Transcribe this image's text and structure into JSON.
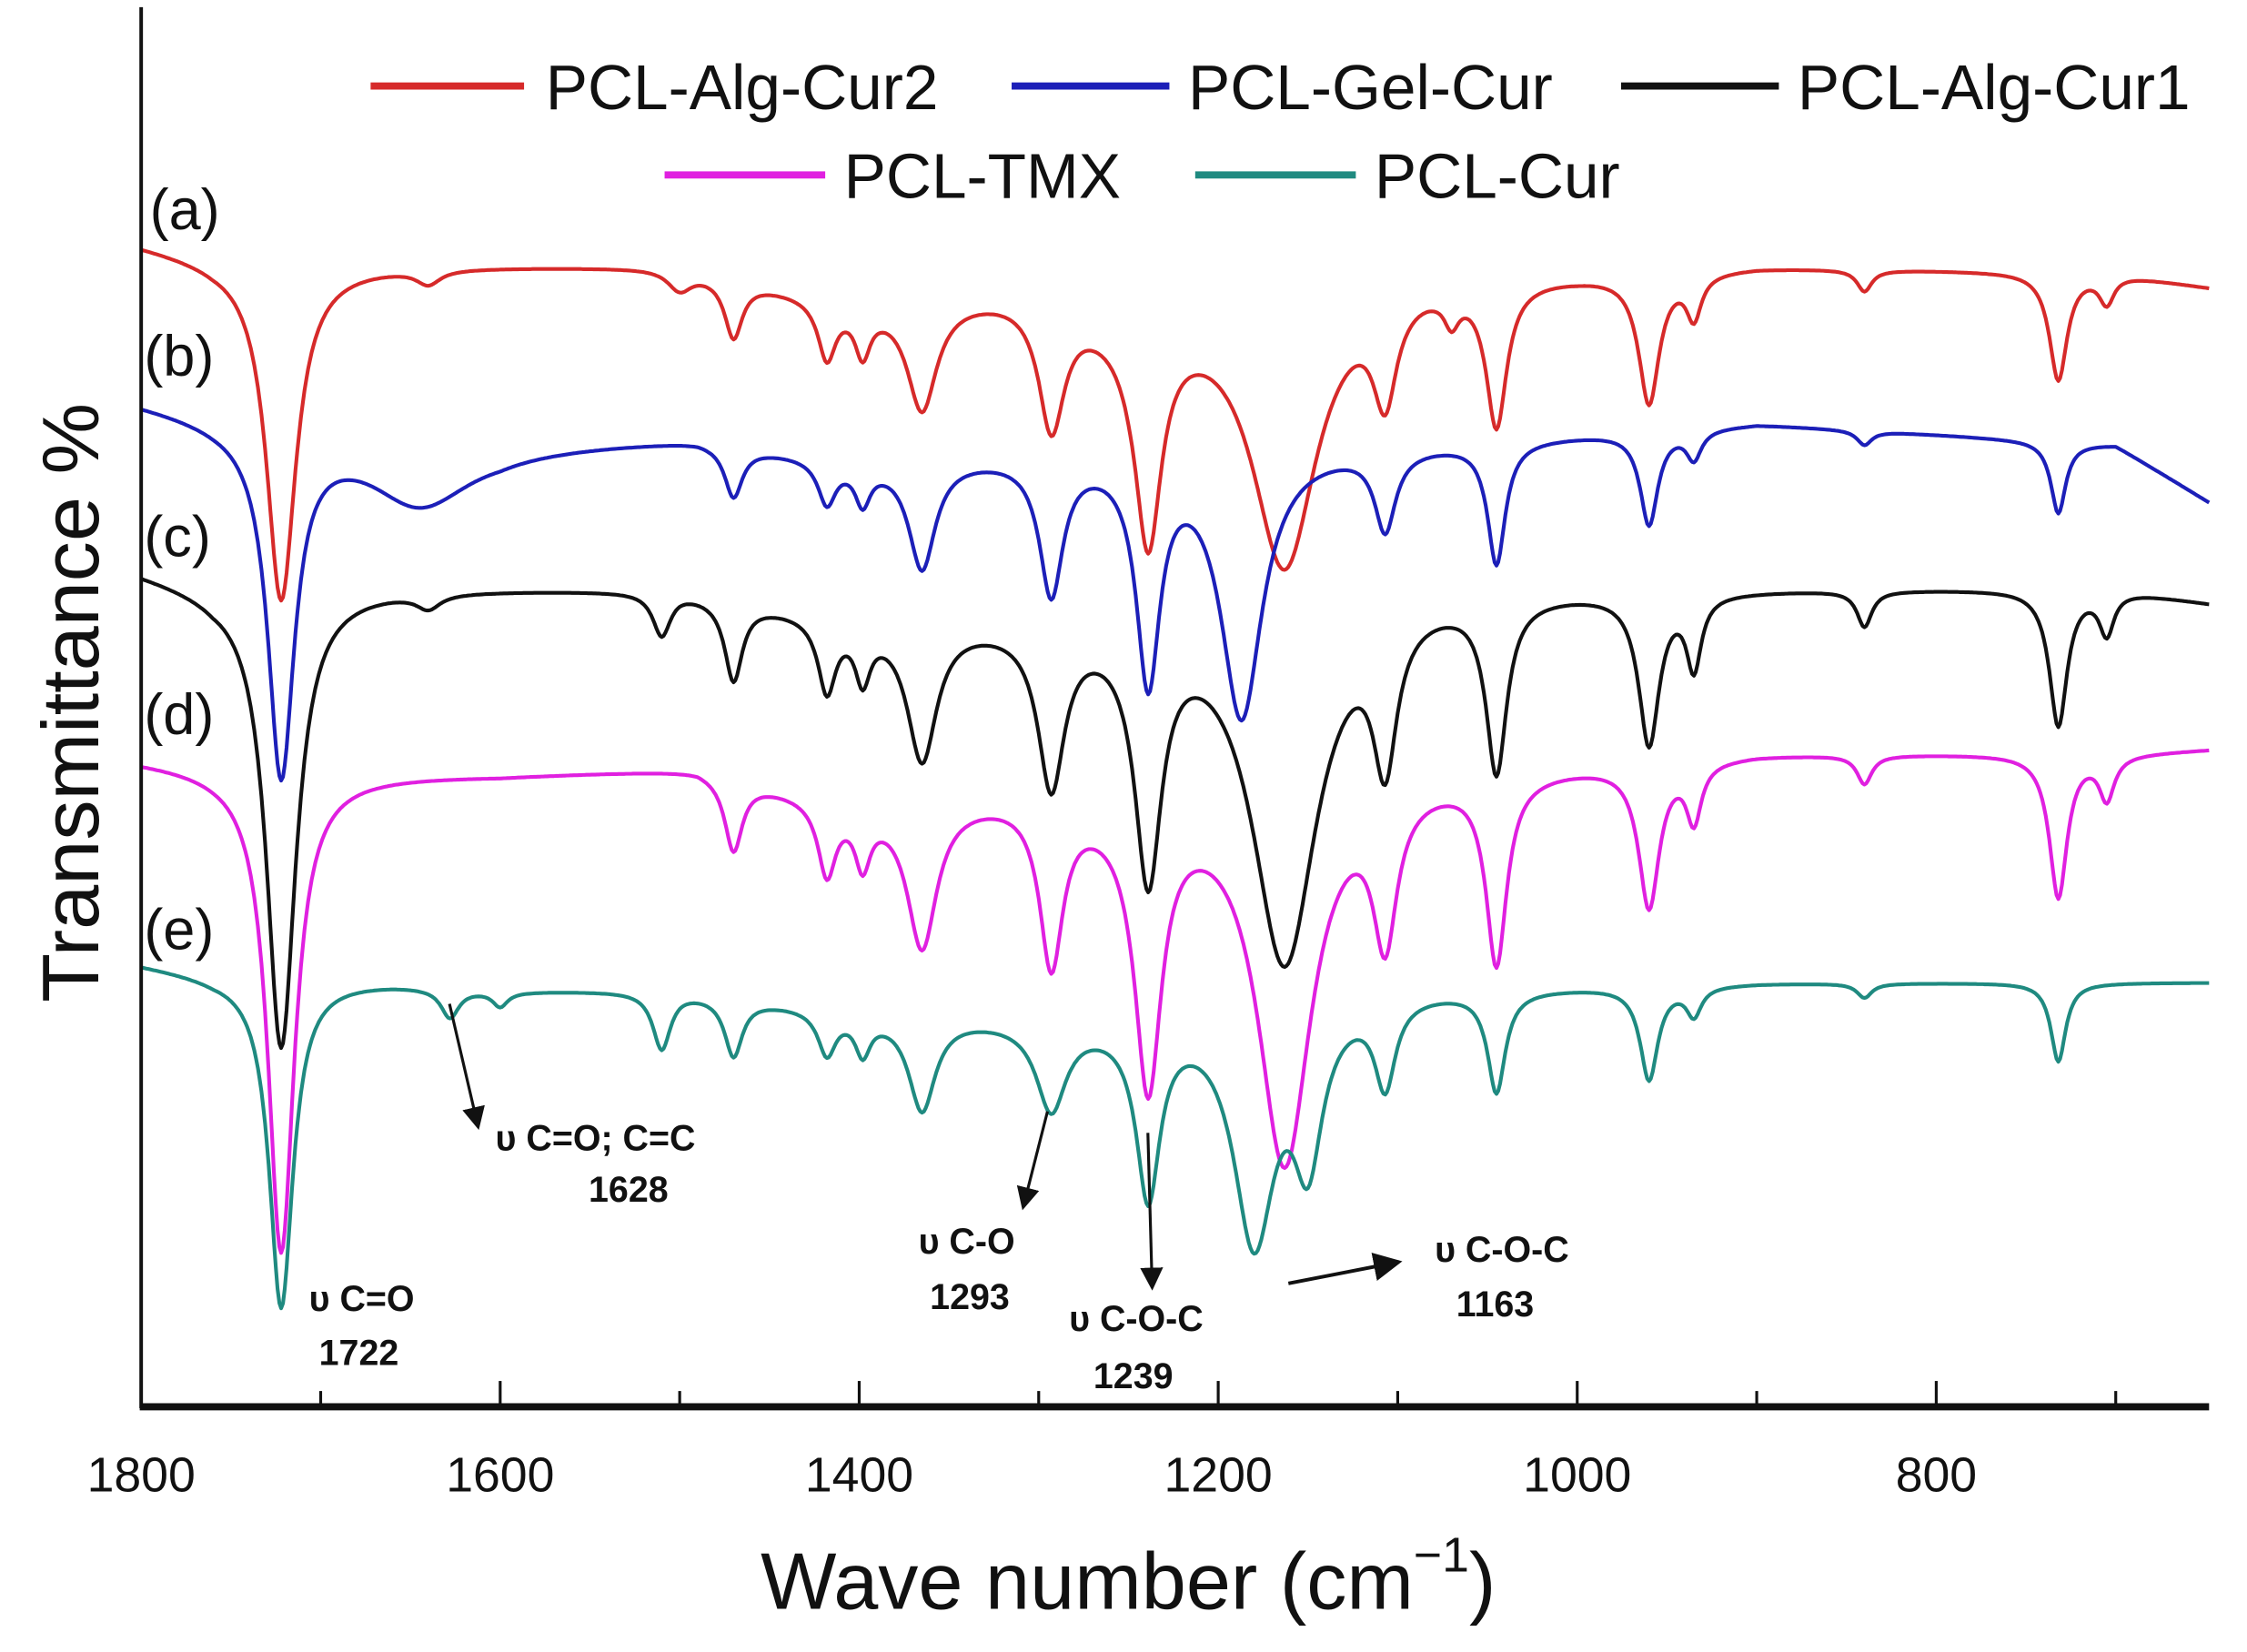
{
  "chart_data": {
    "type": "line",
    "title": "",
    "xlabel": "Wave number (cm",
    "xlabel_sup": "−1",
    "xlabel_close": ")",
    "ylabel": "Transmittance %",
    "xlim": [
      1800,
      648
    ],
    "ylim": [
      0,
      97.5
    ],
    "x_ticks": [
      1800,
      1600,
      1400,
      1200,
      1000,
      800
    ],
    "x_minor_ticks": [
      1700,
      1500,
      1300,
      1100,
      900,
      700
    ],
    "grid": false,
    "legend_position": "top",
    "series": [
      {
        "name": "PCL-Alg-Cur2",
        "tag": "(a)",
        "color": "#d62a2a",
        "baseline": [
          [
            1800,
            81
          ],
          [
            1760,
            80
          ],
          [
            1700,
            79.5
          ],
          [
            1500,
            79.5
          ],
          [
            1400,
            77
          ],
          [
            1300,
            78
          ],
          [
            1250,
            76
          ],
          [
            1100,
            79
          ],
          [
            1000,
            79
          ],
          [
            900,
            79.5
          ],
          [
            700,
            79
          ],
          [
            648,
            78
          ]
        ],
        "peaks": [
          [
            1722,
            23.5,
            10
          ],
          [
            1640,
            1,
            8
          ],
          [
            1500,
            1.5,
            8
          ],
          [
            1470,
            4,
            6
          ],
          [
            1418,
            4,
            6
          ],
          [
            1398,
            3,
            5
          ],
          [
            1365,
            7.5,
            10
          ],
          [
            1293,
            9,
            9
          ],
          [
            1239,
            15,
            9
          ],
          [
            1163,
            19,
            22
          ],
          [
            1107,
            7,
            8
          ],
          [
            1070,
            2,
            5
          ],
          [
            1045,
            10,
            7
          ],
          [
            960,
            9,
            7
          ],
          [
            935,
            3,
            5
          ],
          [
            840,
            1.5,
            5
          ],
          [
            732,
            7.5,
            6
          ],
          [
            705,
            2,
            5
          ]
        ]
      },
      {
        "name": "PCL-Gel-Cur",
        "tag": "(b)",
        "color": "#1c1fb8",
        "baseline": [
          [
            1800,
            70
          ],
          [
            1760,
            69
          ],
          [
            1700,
            68
          ],
          [
            1600,
            67
          ],
          [
            1490,
            67.5
          ],
          [
            1400,
            66
          ],
          [
            1300,
            66.5
          ],
          [
            1100,
            67
          ],
          [
            900,
            68.5
          ],
          [
            700,
            67
          ],
          [
            648,
            63
          ]
        ],
        "peaks": [
          [
            1722,
            24,
            9
          ],
          [
            1645,
            4.5,
            35
          ],
          [
            1470,
            3.5,
            6
          ],
          [
            1418,
            3,
            6
          ],
          [
            1398,
            2.5,
            5
          ],
          [
            1365,
            7.5,
            9
          ],
          [
            1293,
            9.5,
            8
          ],
          [
            1239,
            15.5,
            8
          ],
          [
            1187,
            18.5,
            14
          ],
          [
            1107,
            5.5,
            7
          ],
          [
            1045,
            8.5,
            6
          ],
          [
            960,
            6.5,
            6
          ],
          [
            935,
            2,
            5
          ],
          [
            840,
            1,
            5
          ],
          [
            732,
            5,
            5
          ]
        ]
      },
      {
        "name": "PCL-Alg-Cur1",
        "tag": "(c)",
        "color": "#111111",
        "baseline": [
          [
            1800,
            58.2
          ],
          [
            1760,
            57
          ],
          [
            1700,
            57
          ],
          [
            1500,
            57
          ],
          [
            1400,
            55
          ],
          [
            1250,
            55
          ],
          [
            1100,
            57
          ],
          [
            900,
            57
          ],
          [
            700,
            57
          ],
          [
            648,
            56
          ]
        ],
        "peaks": [
          [
            1722,
            32,
            10
          ],
          [
            1640,
            1,
            8
          ],
          [
            1510,
            3,
            6
          ],
          [
            1470,
            5.5,
            6
          ],
          [
            1418,
            5,
            6
          ],
          [
            1398,
            3.5,
            5
          ],
          [
            1365,
            9.5,
            10
          ],
          [
            1293,
            11,
            9
          ],
          [
            1239,
            17,
            9
          ],
          [
            1163,
            25,
            22
          ],
          [
            1107,
            10,
            8
          ],
          [
            1045,
            12,
            7
          ],
          [
            960,
            10.5,
            7
          ],
          [
            935,
            5,
            5
          ],
          [
            840,
            2.5,
            5
          ],
          [
            732,
            9.5,
            6
          ],
          [
            705,
            3,
            5
          ]
        ]
      },
      {
        "name": "PCL-TMX",
        "tag": "(d)",
        "color": "#e020e0",
        "baseline": [
          [
            1800,
            45
          ],
          [
            1760,
            44.5
          ],
          [
            1700,
            44
          ],
          [
            1600,
            44
          ],
          [
            1490,
            44.5
          ],
          [
            1400,
            42
          ],
          [
            1300,
            43
          ],
          [
            1250,
            42
          ],
          [
            1100,
            44
          ],
          [
            900,
            45.5
          ],
          [
            700,
            45.5
          ],
          [
            648,
            45.8
          ]
        ],
        "peaks": [
          [
            1722,
            33.5,
            9
          ],
          [
            1470,
            5,
            6
          ],
          [
            1418,
            5,
            6
          ],
          [
            1398,
            3.5,
            5
          ],
          [
            1365,
            10,
            10
          ],
          [
            1293,
            11.5,
            8
          ],
          [
            1239,
            19,
            9
          ],
          [
            1163,
            26,
            18
          ],
          [
            1107,
            10,
            8
          ],
          [
            1045,
            13,
            7
          ],
          [
            960,
            10,
            7
          ],
          [
            935,
            4,
            5
          ],
          [
            840,
            2,
            5
          ],
          [
            732,
            10,
            6
          ],
          [
            705,
            3,
            5
          ]
        ]
      },
      {
        "name": "PCL-Cur",
        "tag": "(e)",
        "color": "#1f8a80",
        "baseline": [
          [
            1800,
            30.8
          ],
          [
            1760,
            30
          ],
          [
            1660,
            29.5
          ],
          [
            1600,
            29
          ],
          [
            1500,
            29
          ],
          [
            1400,
            27.5
          ],
          [
            1300,
            27
          ],
          [
            1250,
            27
          ],
          [
            1100,
            29
          ],
          [
            900,
            29.5
          ],
          [
            700,
            29.5
          ],
          [
            648,
            29.5
          ]
        ],
        "peaks": [
          [
            1722,
            23,
            8
          ],
          [
            1628,
            2,
            6
          ],
          [
            1600,
            1,
            5
          ],
          [
            1510,
            4,
            6
          ],
          [
            1470,
            4,
            6
          ],
          [
            1418,
            3,
            6
          ],
          [
            1398,
            2.5,
            5
          ],
          [
            1365,
            6.5,
            9
          ],
          [
            1293,
            6,
            10
          ],
          [
            1239,
            12,
            8
          ],
          [
            1180,
            16,
            14
          ],
          [
            1150,
            10,
            10
          ],
          [
            1107,
            6,
            7
          ],
          [
            1045,
            7,
            6
          ],
          [
            960,
            6.5,
            6
          ],
          [
            935,
            2,
            5
          ],
          [
            840,
            1,
            5
          ],
          [
            732,
            5.5,
            5
          ]
        ]
      }
    ],
    "annotations": [
      {
        "line1": "υ C=O",
        "line2": "1722"
      },
      {
        "line1": "υ C=O; C=C",
        "line2": "1628"
      },
      {
        "line1": "υ C-O",
        "line2": "1293"
      },
      {
        "line1": "υ C-O-C",
        "line2": "1239"
      },
      {
        "line1": "υ C-O-C",
        "line2": "1163"
      }
    ]
  }
}
